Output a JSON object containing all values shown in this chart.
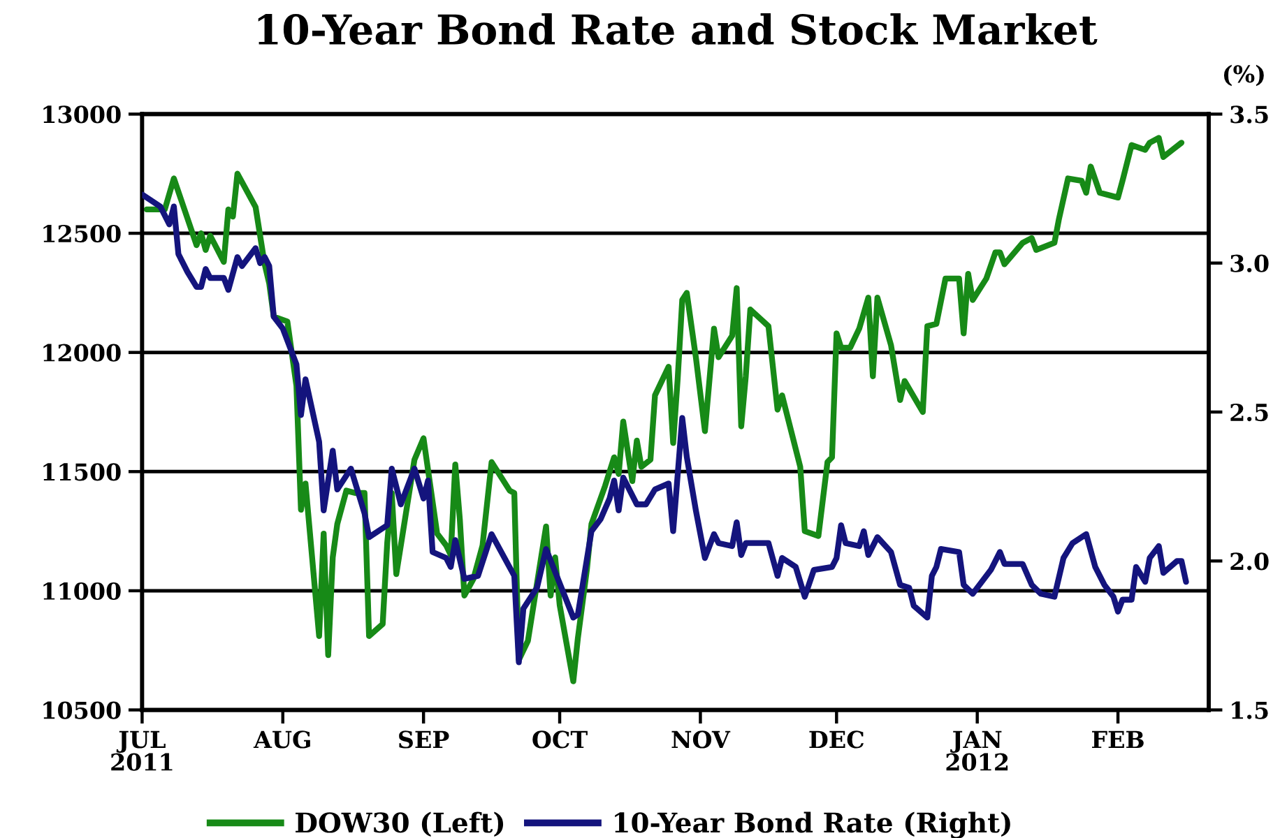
{
  "chart_data": {
    "type": "line",
    "title": "10-Year Bond Rate and Stock Market",
    "y2label": "(%)",
    "xlim": [
      "2011-07-01",
      "2012-02-21"
    ],
    "xticks": [
      {
        "value": "2011-07-01",
        "label": "JUL\n2011"
      },
      {
        "value": "2011-08-01",
        "label": "AUG"
      },
      {
        "value": "2011-09-01",
        "label": "SEP"
      },
      {
        "value": "2011-10-01",
        "label": "OCT"
      },
      {
        "value": "2011-11-01",
        "label": "NOV"
      },
      {
        "value": "2011-12-01",
        "label": "DEC"
      },
      {
        "value": "2012-01-01",
        "label": "JAN\n2012"
      },
      {
        "value": "2012-02-01",
        "label": "FEB"
      }
    ],
    "ylim": [
      10500,
      13000
    ],
    "yticks": [
      10500,
      11000,
      11500,
      12000,
      12500,
      13000
    ],
    "y2lim": [
      1.5,
      3.5
    ],
    "y2ticks": [
      1.5,
      {
        "value": 2,
        "label": "2.0"
      },
      2.5,
      {
        "value": 3,
        "label": "3.0"
      },
      3.5
    ],
    "grid": "y",
    "legend": "bottom",
    "series": [
      {
        "name": "DOW30 (Left)",
        "color": "#178a17",
        "x": [
          "2011-07-02",
          "2011-07-06",
          "2011-07-08",
          "2011-07-13",
          "2011-07-14",
          "2011-07-15",
          "2011-07-16",
          "2011-07-19",
          "2011-07-20",
          "2011-07-21",
          "2011-07-22",
          "2011-07-26",
          "2011-07-28",
          "2011-07-29",
          "2011-07-30",
          "2011-08-02",
          "2011-08-04",
          "2011-08-05",
          "2011-08-06",
          "2011-08-09",
          "2011-08-10",
          "2011-08-11",
          "2011-08-12",
          "2011-08-13",
          "2011-08-15",
          "2011-08-17",
          "2011-08-19",
          "2011-08-20",
          "2011-08-23",
          "2011-08-24",
          "2011-08-25",
          "2011-08-26",
          "2011-08-30",
          "2011-09-01",
          "2011-09-04",
          "2011-09-06",
          "2011-09-07",
          "2011-09-08",
          "2011-09-09",
          "2011-09-10",
          "2011-09-12",
          "2011-09-14",
          "2011-09-16",
          "2011-09-20",
          "2011-09-21",
          "2011-09-22",
          "2011-09-24",
          "2011-09-28",
          "2011-09-29",
          "2011-09-30",
          "2011-10-01",
          "2011-10-04",
          "2011-10-05",
          "2011-10-07",
          "2011-10-08",
          "2011-10-11",
          "2011-10-13",
          "2011-10-14",
          "2011-10-15",
          "2011-10-17",
          "2011-10-18",
          "2011-10-19",
          "2011-10-21",
          "2011-10-22",
          "2011-10-25",
          "2011-10-26",
          "2011-10-27",
          "2011-10-28",
          "2011-10-29",
          "2011-10-31",
          "2011-11-02",
          "2011-11-04",
          "2011-11-05",
          "2011-11-08",
          "2011-11-09",
          "2011-11-10",
          "2011-11-11",
          "2011-11-12",
          "2011-11-16",
          "2011-11-18",
          "2011-11-19",
          "2011-11-23",
          "2011-11-24",
          "2011-11-27",
          "2011-11-29",
          "2011-11-30",
          "2011-12-01",
          "2011-12-02",
          "2011-12-04",
          "2011-12-06",
          "2011-12-08",
          "2011-12-09",
          "2011-12-10",
          "2011-12-13",
          "2011-12-15",
          "2011-12-16",
          "2011-12-20",
          "2011-12-21",
          "2011-12-23",
          "2011-12-25",
          "2011-12-28",
          "2011-12-29",
          "2011-12-30",
          "2011-12-31",
          "2012-01-03",
          "2012-01-05",
          "2012-01-06",
          "2012-01-07",
          "2012-01-11",
          "2012-01-13",
          "2012-01-14",
          "2012-01-18",
          "2012-01-19",
          "2012-01-21",
          "2012-01-24",
          "2012-01-25",
          "2012-01-26",
          "2012-01-28",
          "2012-02-01",
          "2012-02-02",
          "2012-02-04",
          "2012-02-07",
          "2012-02-08",
          "2012-02-10",
          "2012-02-11",
          "2012-02-13",
          "2012-02-15"
        ],
        "values": [
          12600,
          12600,
          12730,
          12450,
          12500,
          12430,
          12490,
          12380,
          12600,
          12570,
          12750,
          12610,
          12370,
          12290,
          12150,
          12130,
          11860,
          11340,
          11450,
          10810,
          11240,
          10730,
          11140,
          11280,
          11420,
          11410,
          11410,
          10810,
          10860,
          11200,
          11410,
          11070,
          11550,
          11640,
          11240,
          11190,
          11150,
          11530,
          11300,
          10980,
          11050,
          11190,
          11540,
          11420,
          11410,
          10710,
          10790,
          11270,
          10980,
          11140,
          10940,
          10620,
          10800,
          11090,
          11280,
          11440,
          11560,
          11490,
          11710,
          11460,
          11630,
          11520,
          11550,
          11820,
          11940,
          11620,
          11890,
          12220,
          12250,
          11980,
          11670,
          12100,
          11980,
          12070,
          12270,
          11690,
          11900,
          12180,
          12110,
          11760,
          11820,
          11520,
          11250,
          11230,
          11540,
          11560,
          12080,
          12020,
          12020,
          12100,
          12230,
          11900,
          12230,
          12030,
          11800,
          11880,
          11750,
          12110,
          12120,
          12310,
          12310,
          12080,
          12330,
          12220,
          12310,
          12420,
          12420,
          12370,
          12460,
          12480,
          12430,
          12460,
          12560,
          12730,
          12720,
          12670,
          12780,
          12670,
          12650,
          12720,
          12870,
          12850,
          12880,
          12900,
          12820,
          12850,
          12880
        ]
      },
      {
        "name": "10-Year Bond Rate (Right)",
        "color": "#14147d",
        "axis": "y2",
        "x": [
          "2011-07-01",
          "2011-07-05",
          "2011-07-07",
          "2011-07-08",
          "2011-07-09",
          "2011-07-11",
          "2011-07-13",
          "2011-07-14",
          "2011-07-15",
          "2011-07-16",
          "2011-07-19",
          "2011-07-20",
          "2011-07-22",
          "2011-07-23",
          "2011-07-26",
          "2011-07-27",
          "2011-07-28",
          "2011-07-29",
          "2011-07-30",
          "2011-08-01",
          "2011-08-04",
          "2011-08-05",
          "2011-08-06",
          "2011-08-09",
          "2011-08-10",
          "2011-08-12",
          "2011-08-13",
          "2011-08-16",
          "2011-08-19",
          "2011-08-20",
          "2011-08-24",
          "2011-08-25",
          "2011-08-27",
          "2011-08-30",
          "2011-09-01",
          "2011-09-02",
          "2011-09-03",
          "2011-09-06",
          "2011-09-07",
          "2011-09-08",
          "2011-09-10",
          "2011-09-13",
          "2011-09-16",
          "2011-09-21",
          "2011-09-22",
          "2011-09-23",
          "2011-09-26",
          "2011-09-28",
          "2011-10-04",
          "2011-10-05",
          "2011-10-08",
          "2011-10-10",
          "2011-10-12",
          "2011-10-13",
          "2011-10-14",
          "2011-10-15",
          "2011-10-18",
          "2011-10-20",
          "2011-10-22",
          "2011-10-25",
          "2011-10-26",
          "2011-10-28",
          "2011-10-29",
          "2011-10-31",
          "2011-11-02",
          "2011-11-04",
          "2011-11-05",
          "2011-11-08",
          "2011-11-09",
          "2011-11-10",
          "2011-11-11",
          "2011-11-16",
          "2011-11-18",
          "2011-11-19",
          "2011-11-22",
          "2011-11-24",
          "2011-11-26",
          "2011-11-30",
          "2011-12-01",
          "2011-12-02",
          "2011-12-03",
          "2011-12-06",
          "2011-12-07",
          "2011-12-08",
          "2011-12-10",
          "2011-12-13",
          "2011-12-15",
          "2011-12-17",
          "2011-12-18",
          "2011-12-21",
          "2011-12-22",
          "2011-12-23",
          "2011-12-24",
          "2011-12-28",
          "2011-12-29",
          "2011-12-31",
          "2012-01-04",
          "2012-01-06",
          "2012-01-07",
          "2012-01-11",
          "2012-01-13",
          "2012-01-15",
          "2012-01-18",
          "2012-01-20",
          "2012-01-22",
          "2012-01-25",
          "2012-01-27",
          "2012-01-29",
          "2012-01-31",
          "2012-02-01",
          "2012-02-02",
          "2012-02-04",
          "2012-02-05",
          "2012-02-07",
          "2012-02-08",
          "2012-02-10",
          "2012-02-11",
          "2012-02-14",
          "2012-02-15",
          "2012-02-16"
        ],
        "values": [
          3.23,
          3.19,
          3.13,
          3.19,
          3.03,
          2.97,
          2.92,
          2.92,
          2.98,
          2.95,
          2.95,
          2.91,
          3.02,
          2.99,
          3.05,
          3.0,
          3.02,
          2.99,
          2.82,
          2.78,
          2.66,
          2.49,
          2.61,
          2.4,
          2.17,
          2.37,
          2.24,
          2.31,
          2.16,
          2.08,
          2.12,
          2.31,
          2.19,
          2.31,
          2.21,
          2.27,
          2.03,
          2.01,
          1.98,
          2.07,
          1.94,
          1.95,
          2.09,
          1.95,
          1.66,
          1.84,
          1.91,
          2.04,
          1.81,
          1.82,
          2.1,
          2.14,
          2.21,
          2.27,
          2.17,
          2.28,
          2.19,
          2.19,
          2.24,
          2.26,
          2.1,
          2.48,
          2.35,
          2.17,
          2.01,
          2.09,
          2.06,
          2.05,
          2.13,
          2.02,
          2.06,
          2.06,
          1.95,
          2.01,
          1.98,
          1.88,
          1.97,
          1.98,
          2.01,
          2.12,
          2.06,
          2.05,
          2.1,
          2.02,
          2.08,
          2.03,
          1.92,
          1.91,
          1.85,
          1.81,
          1.95,
          1.98,
          2.04,
          2.03,
          1.92,
          1.89,
          1.97,
          2.03,
          1.99,
          1.99,
          1.92,
          1.89,
          1.88,
          2.01,
          2.06,
          2.09,
          1.98,
          1.92,
          1.88,
          1.83,
          1.87,
          1.87,
          1.98,
          1.93,
          2.01,
          2.05,
          1.96,
          2.0,
          2.0,
          1.93
        ]
      }
    ]
  }
}
